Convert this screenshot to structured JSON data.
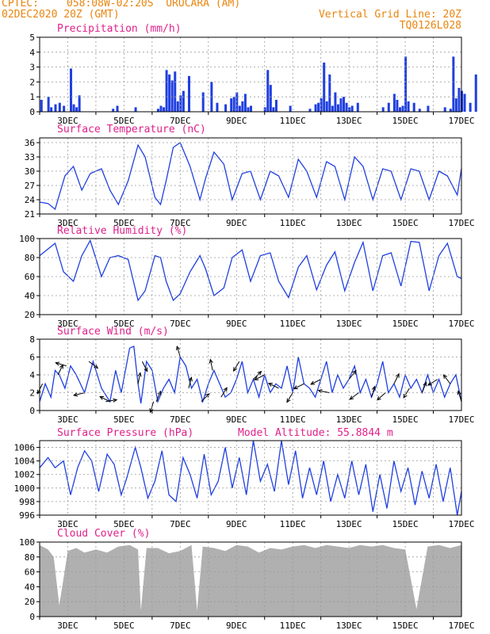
{
  "header": {
    "source": "CPTEC:",
    "location": "058:08W-02:20S  URUCARA (AM)",
    "issued": "02DEC2020 20Z (GMT)",
    "grid_note": "Vertical Grid Line: 20Z",
    "run_id": "TQ0126L028"
  },
  "colors": {
    "header": "#e8850f",
    "title": "#e0208a",
    "series": "#1f3fe0",
    "cloud": "#b0b0b0",
    "grid": "#9a9a9a"
  },
  "x_axis": {
    "dates": [
      "3DEC",
      "5DEC",
      "7DEC",
      "9DEC",
      "11DEC",
      "13DEC",
      "15DEC",
      "17DEC"
    ],
    "range_days": [
      0,
      15
    ]
  },
  "chart_data": [
    {
      "type": "bar",
      "title": "Precipitation (mm/h)",
      "ylim": [
        0,
        5
      ],
      "yticks": [
        0,
        1,
        2,
        3,
        4,
        5
      ],
      "series": [
        {
          "x": [
            0.05,
            0.3,
            0.4,
            0.55,
            0.7,
            0.85,
            1.1,
            1.2,
            1.3,
            1.4,
            2.6,
            2.75,
            3.4,
            4.2,
            4.3,
            4.4,
            4.5,
            4.6,
            4.7,
            4.8,
            4.9,
            5.0,
            5.1,
            5.3,
            5.8,
            6.1,
            6.3,
            6.6,
            6.8,
            6.9,
            7.0,
            7.1,
            7.2,
            7.3,
            7.4,
            7.5,
            8.0,
            8.1,
            8.2,
            8.3,
            8.4,
            8.9,
            9.6,
            9.8,
            9.9,
            10.0,
            10.1,
            10.2,
            10.3,
            10.4,
            10.5,
            10.6,
            10.7,
            10.8,
            10.9,
            11.0,
            11.1,
            11.3,
            12.2,
            12.4,
            12.6,
            12.7,
            12.8,
            12.9,
            13.0,
            13.1,
            13.3,
            13.5,
            13.8,
            14.4,
            14.6,
            14.7,
            14.8,
            14.9,
            15.0,
            15.1,
            15.3,
            15.5
          ],
          "values": [
            0.8,
            1.0,
            0.3,
            0.5,
            0.6,
            0.4,
            2.9,
            0.5,
            0.3,
            1.1,
            0.2,
            0.4,
            0.3,
            0.2,
            0.4,
            0.3,
            2.8,
            2.5,
            2.1,
            2.7,
            0.7,
            1.1,
            1.4,
            2.4,
            1.3,
            2.0,
            0.6,
            0.5,
            0.9,
            1.0,
            1.3,
            0.4,
            0.7,
            1.2,
            0.3,
            0.4,
            0.3,
            2.8,
            1.8,
            0.3,
            0.8,
            0.4,
            0.2,
            0.5,
            0.6,
            0.9,
            3.3,
            0.7,
            2.5,
            0.4,
            1.3,
            0.5,
            0.9,
            1.0,
            0.6,
            0.3,
            0.4,
            0.6,
            0.3,
            0.6,
            1.2,
            0.8,
            0.3,
            0.4,
            3.7,
            0.7,
            0.6,
            0.2,
            0.4,
            0.3,
            0.2,
            3.7,
            0.9,
            1.6,
            1.4,
            1.2,
            0.6,
            2.5
          ]
        }
      ]
    },
    {
      "type": "line",
      "title": "Surface Temperature (nC)",
      "ylim": [
        21,
        37
      ],
      "yticks": [
        21,
        24,
        27,
        30,
        33,
        36
      ],
      "series": [
        {
          "x": [
            0,
            0.3,
            0.55,
            0.9,
            1.2,
            1.5,
            1.8,
            2.2,
            2.5,
            2.8,
            3.15,
            3.5,
            3.75,
            4.1,
            4.3,
            4.5,
            4.75,
            5.0,
            5.35,
            5.7,
            5.9,
            6.2,
            6.55,
            6.85,
            7.2,
            7.5,
            7.85,
            8.2,
            8.5,
            8.85,
            9.2,
            9.5,
            9.85,
            10.2,
            10.5,
            10.85,
            11.2,
            11.5,
            11.85,
            12.2,
            12.5,
            12.85,
            13.2,
            13.5,
            13.85,
            14.2,
            14.5,
            14.85,
            15.0
          ],
          "values": [
            23.5,
            23.2,
            22.0,
            29.0,
            31.0,
            26.0,
            29.5,
            30.5,
            26.0,
            23.0,
            28.0,
            35.5,
            33.0,
            24.5,
            23.0,
            28.0,
            35.0,
            36.0,
            31.0,
            24.0,
            28.5,
            34.0,
            31.5,
            24.0,
            29.5,
            30.0,
            24.0,
            30.0,
            29.0,
            24.5,
            32.5,
            30.0,
            24.5,
            32.0,
            31.0,
            24.0,
            33.0,
            31.0,
            24.0,
            30.5,
            30.0,
            24.0,
            30.5,
            30.0,
            24.0,
            30.0,
            29.0,
            25.0,
            30.5
          ]
        }
      ]
    },
    {
      "type": "line",
      "title": "Relative Humidity (%)",
      "ylim": [
        20,
        100
      ],
      "yticks": [
        20,
        40,
        60,
        80,
        100
      ],
      "series": [
        {
          "x": [
            0,
            0.55,
            0.85,
            1.2,
            1.5,
            1.8,
            2.2,
            2.5,
            2.8,
            3.15,
            3.5,
            3.75,
            4.1,
            4.3,
            4.5,
            4.75,
            5.0,
            5.35,
            5.7,
            5.9,
            6.2,
            6.55,
            6.85,
            7.2,
            7.5,
            7.85,
            8.2,
            8.5,
            8.85,
            9.2,
            9.5,
            9.85,
            10.2,
            10.5,
            10.85,
            11.2,
            11.5,
            11.85,
            12.2,
            12.5,
            12.85,
            13.2,
            13.5,
            13.85,
            14.2,
            14.5,
            14.85,
            15.0
          ],
          "values": [
            82,
            95,
            65,
            55,
            82,
            98,
            60,
            80,
            82,
            78,
            35,
            45,
            82,
            80,
            55,
            35,
            42,
            65,
            82,
            68,
            40,
            48,
            80,
            88,
            55,
            82,
            85,
            55,
            38,
            70,
            82,
            46,
            72,
            86,
            45,
            75,
            96,
            45,
            82,
            85,
            50,
            97,
            96,
            45,
            82,
            95,
            60,
            58
          ]
        }
      ]
    },
    {
      "type": "line",
      "title": "Surface Wind (m/s)",
      "ylim": [
        0,
        8
      ],
      "yticks": [
        0,
        2,
        4,
        6,
        8
      ],
      "series": [
        {
          "x": [
            0,
            0.2,
            0.4,
            0.55,
            0.7,
            0.9,
            1.1,
            1.3,
            1.6,
            1.9,
            2.2,
            2.5,
            2.7,
            2.9,
            3.2,
            3.35,
            3.5,
            3.6,
            3.8,
            4.0,
            4.2,
            4.4,
            4.6,
            4.8,
            5.0,
            5.2,
            5.4,
            5.6,
            5.8,
            6.0,
            6.2,
            6.4,
            6.6,
            6.8,
            7.0,
            7.2,
            7.4,
            7.6,
            7.8,
            8.0,
            8.2,
            8.4,
            8.6,
            8.8,
            9.0,
            9.2,
            9.4,
            9.6,
            9.8,
            10.0,
            10.2,
            10.4,
            10.6,
            10.8,
            11.0,
            11.2,
            11.4,
            11.6,
            11.8,
            12.0,
            12.2,
            12.4,
            12.6,
            12.8,
            13.0,
            13.2,
            13.4,
            13.6,
            13.8,
            14.0,
            14.2,
            14.4,
            14.6,
            14.8,
            15.0
          ],
          "values": [
            1.0,
            3.0,
            1.5,
            4.5,
            4.0,
            2.5,
            5.0,
            4.0,
            2.0,
            5.5,
            2.5,
            1.0,
            4.5,
            2.0,
            7.0,
            7.2,
            3.0,
            0.8,
            5.5,
            4.5,
            1.0,
            2.5,
            3.5,
            2.0,
            6.0,
            5.0,
            2.5,
            3.5,
            1.0,
            3.0,
            4.5,
            3.0,
            1.5,
            2.0,
            3.5,
            5.5,
            2.0,
            3.5,
            1.5,
            4.0,
            2.0,
            3.0,
            2.5,
            5.0,
            2.0,
            6.0,
            3.0,
            2.5,
            1.5,
            3.5,
            5.5,
            2.0,
            4.0,
            2.5,
            3.5,
            5.0,
            2.0,
            3.5,
            1.5,
            3.0,
            5.5,
            2.0,
            3.0,
            1.5,
            4.0,
            2.5,
            3.5,
            2.0,
            4.0,
            2.0,
            3.5,
            1.5,
            3.0,
            4.0,
            1.0
          ]
        }
      ],
      "vectors": [
        {
          "x": 0.1,
          "u": -0.5,
          "v": -1
        },
        {
          "x": 0.65,
          "u": 0.5,
          "v": 1
        },
        {
          "x": 0.95,
          "u": -1,
          "v": 0.3
        },
        {
          "x": 1.6,
          "u": -1.2,
          "v": -0.3
        },
        {
          "x": 1.75,
          "u": 0.8,
          "v": -0.6
        },
        {
          "x": 2.35,
          "u": 1.2,
          "v": 0.2
        },
        {
          "x": 2.5,
          "u": -1,
          "v": 0.5
        },
        {
          "x": 3.5,
          "u": 0.2,
          "v": 1
        },
        {
          "x": 3.65,
          "u": 0.5,
          "v": -1
        },
        {
          "x": 4.05,
          "u": -0.3,
          "v": -1
        },
        {
          "x": 4.15,
          "u": 0.5,
          "v": 1.2
        },
        {
          "x": 5.0,
          "u": -0.3,
          "v": 1
        },
        {
          "x": 5.3,
          "u": 0.3,
          "v": 1.2
        },
        {
          "x": 5.75,
          "u": 1,
          "v": 1
        },
        {
          "x": 6.15,
          "u": -0.2,
          "v": 1
        },
        {
          "x": 6.45,
          "u": 0.5,
          "v": 0.8
        },
        {
          "x": 7.1,
          "u": -0.6,
          "v": -1
        },
        {
          "x": 7.6,
          "u": 0.9,
          "v": 0.9
        },
        {
          "x": 8.0,
          "u": -1,
          "v": -0.5
        },
        {
          "x": 8.5,
          "u": -1,
          "v": 0.5
        },
        {
          "x": 9.0,
          "u": -0.6,
          "v": -1
        },
        {
          "x": 9.4,
          "u": -1,
          "v": -0.5
        },
        {
          "x": 10.0,
          "u": -1,
          "v": -0.5
        },
        {
          "x": 10.3,
          "u": -1,
          "v": 0.2
        },
        {
          "x": 11.0,
          "u": 0.8,
          "v": 1
        },
        {
          "x": 11.35,
          "u": -0.8,
          "v": -0.6
        },
        {
          "x": 11.8,
          "u": 0.3,
          "v": 1
        },
        {
          "x": 12.3,
          "u": -0.8,
          "v": -0.7
        },
        {
          "x": 12.6,
          "u": 0.5,
          "v": 1
        },
        {
          "x": 13.15,
          "u": -0.6,
          "v": -1
        },
        {
          "x": 13.6,
          "u": 0.4,
          "v": 1
        },
        {
          "x": 14.15,
          "u": -0.8,
          "v": -0.5
        },
        {
          "x": 14.6,
          "u": -0.6,
          "v": 0.8
        },
        {
          "x": 15.0,
          "u": -0.3,
          "v": 1
        }
      ]
    },
    {
      "type": "line",
      "title": "Surface Pressure (hPa)",
      "annotation": "Model Altitude: 55.8844 m",
      "ylim": [
        996,
        1007
      ],
      "yticks": [
        996,
        998,
        1000,
        1002,
        1004,
        1006
      ],
      "series": [
        {
          "x": [
            0,
            0.3,
            0.55,
            0.85,
            1.1,
            1.35,
            1.6,
            1.85,
            2.1,
            2.4,
            2.65,
            2.9,
            3.1,
            3.4,
            3.6,
            3.85,
            4.1,
            4.35,
            4.6,
            4.85,
            5.1,
            5.35,
            5.6,
            5.85,
            6.1,
            6.35,
            6.6,
            6.85,
            7.1,
            7.35,
            7.6,
            7.85,
            8.1,
            8.35,
            8.6,
            8.85,
            9.1,
            9.35,
            9.6,
            9.85,
            10.1,
            10.35,
            10.6,
            10.85,
            11.1,
            11.35,
            11.6,
            11.85,
            12.1,
            12.35,
            12.6,
            12.85,
            13.1,
            13.35,
            13.6,
            13.85,
            14.1,
            14.35,
            14.6,
            14.85,
            15.0
          ],
          "values": [
            1003.0,
            1004.5,
            1003.0,
            1004.0,
            999.0,
            1003.0,
            1005.5,
            1004.0,
            999.5,
            1005.0,
            1003.5,
            999.0,
            1001.5,
            1006.0,
            1003.0,
            998.5,
            1001.0,
            1005.5,
            999.0,
            998.0,
            1004.5,
            1002.0,
            998.5,
            1005.0,
            999.0,
            1001.0,
            1006.0,
            1000.0,
            1004.5,
            999.0,
            1007.0,
            1001.0,
            1003.5,
            999.5,
            1007.0,
            1000.5,
            1005.5,
            998.5,
            1003.0,
            999.0,
            1004.0,
            998.0,
            1002.0,
            998.5,
            1004.0,
            999.0,
            1003.5,
            996.5,
            1002.0,
            997.0,
            1004.0,
            999.5,
            1003.0,
            997.5,
            1002.5,
            998.5,
            1003.5,
            998.0,
            1003.0,
            996.0,
            999.5
          ]
        }
      ]
    },
    {
      "type": "area",
      "title": "Cloud Cover (%)",
      "ylim": [
        0,
        100
      ],
      "yticks": [
        0,
        20,
        40,
        60,
        80,
        100
      ],
      "series": [
        {
          "x": [
            0,
            0.3,
            0.5,
            0.7,
            1.0,
            1.3,
            1.6,
            2.0,
            2.4,
            2.8,
            3.2,
            3.5,
            3.6,
            3.8,
            4.2,
            4.6,
            5.0,
            5.4,
            5.6,
            5.8,
            6.2,
            6.6,
            7.0,
            7.4,
            7.8,
            8.2,
            8.6,
            9.0,
            9.4,
            9.8,
            10.2,
            10.6,
            11.0,
            11.4,
            11.8,
            12.2,
            12.6,
            13.0,
            13.4,
            13.8,
            14.2,
            14.6,
            15.0
          ],
          "values": [
            96,
            90,
            80,
            15,
            88,
            92,
            86,
            90,
            86,
            94,
            96,
            90,
            8,
            92,
            92,
            85,
            88,
            96,
            8,
            94,
            92,
            88,
            96,
            94,
            86,
            92,
            90,
            94,
            96,
            92,
            96,
            94,
            92,
            96,
            94,
            96,
            92,
            90,
            10,
            94,
            96,
            92,
            96
          ]
        }
      ]
    }
  ]
}
